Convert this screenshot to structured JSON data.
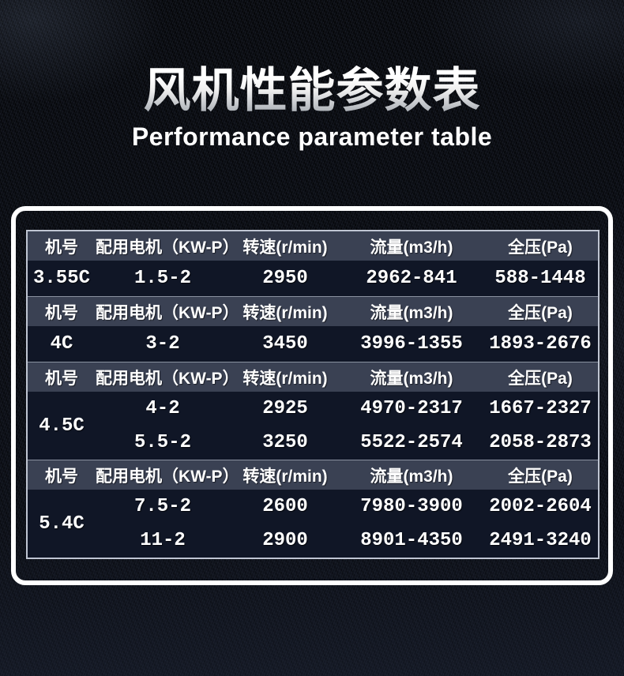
{
  "page": {
    "title_cn": "风机性能参数表",
    "title_en": "Performance parameter table"
  },
  "table": {
    "columns": [
      "机号",
      "配用电机（KW-P）",
      "转速(r/min)",
      "流量(m3/h)",
      "全压(Pa)"
    ],
    "sections": [
      {
        "model": "3.55C",
        "rows": [
          {
            "motor": "1.5-2",
            "speed": "2950",
            "flow": "2962-841",
            "pressure": "588-1448"
          }
        ]
      },
      {
        "model": "4C",
        "rows": [
          {
            "motor": "3-2",
            "speed": "3450",
            "flow": "3996-1355",
            "pressure": "1893-2676"
          }
        ]
      },
      {
        "model": "4.5C",
        "rows": [
          {
            "motor": "4-2",
            "speed": "2925",
            "flow": "4970-2317",
            "pressure": "1667-2327"
          },
          {
            "motor": "5.5-2",
            "speed": "3250",
            "flow": "5522-2574",
            "pressure": "2058-2873"
          }
        ]
      },
      {
        "model": "5.4C",
        "rows": [
          {
            "motor": "7.5-2",
            "speed": "2600",
            "flow": "7980-3900",
            "pressure": "2002-2604"
          },
          {
            "motor": "11-2",
            "speed": "2900",
            "flow": "8901-4350",
            "pressure": "2491-3240"
          }
        ]
      }
    ]
  },
  "colors": {
    "background": "#090b10",
    "header_bg": "#3a4153",
    "row_bg": "#101626",
    "frame_border": "#ffffff",
    "inner_border": "#bfc5d2",
    "text": "#ffffff"
  },
  "chart_data": {
    "type": "table",
    "title": "风机性能参数表 / Performance parameter table",
    "columns": [
      "机号",
      "配用电机（KW-P）",
      "转速(r/min)",
      "流量(m3/h)",
      "全压(Pa)"
    ],
    "rows": [
      [
        "3.55C",
        "1.5-2",
        "2950",
        "2962-841",
        "588-1448"
      ],
      [
        "4C",
        "3-2",
        "3450",
        "3996-1355",
        "1893-2676"
      ],
      [
        "4.5C",
        "4-2",
        "2925",
        "4970-2317",
        "1667-2327"
      ],
      [
        "4.5C",
        "5.5-2",
        "3250",
        "5522-2574",
        "2058-2873"
      ],
      [
        "5.4C",
        "7.5-2",
        "2600",
        "7980-3900",
        "2002-2604"
      ],
      [
        "5.4C",
        "11-2",
        "2900",
        "8901-4350",
        "2491-3240"
      ]
    ]
  }
}
